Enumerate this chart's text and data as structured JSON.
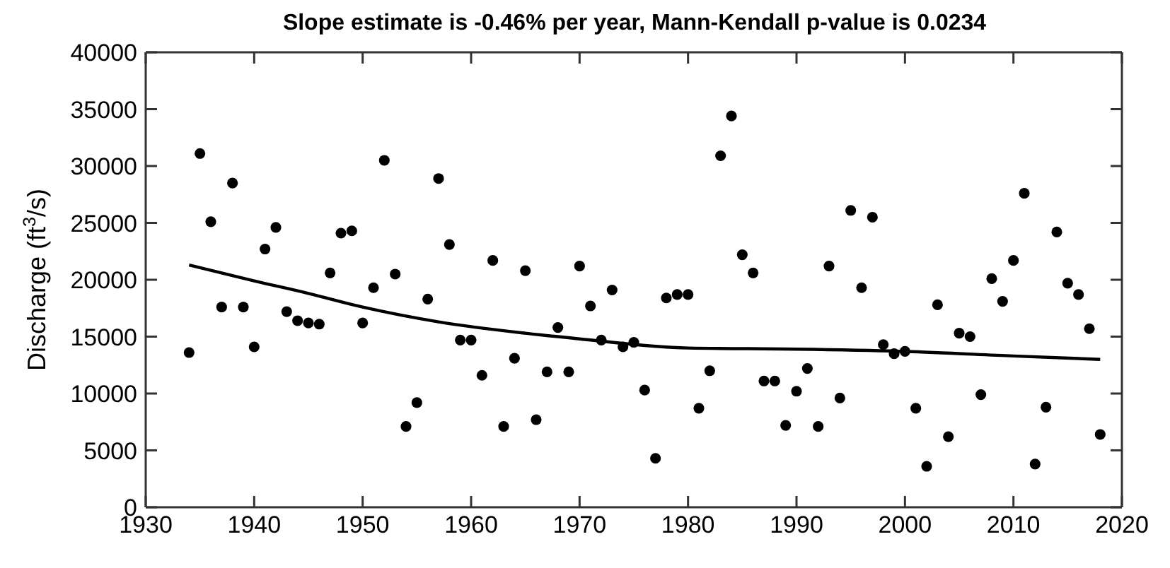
{
  "chart_data": {
    "type": "scatter",
    "title": "Slope estimate is -0.46% per year, Mann-Kendall p-value is 0.0234",
    "ylabel": "Discharge (ft$^{3}$/s)",
    "x": [
      1934,
      1935,
      1936,
      1937,
      1938,
      1939,
      1940,
      1941,
      1942,
      1943,
      1944,
      1945,
      1946,
      1947,
      1948,
      1949,
      1950,
      1951,
      1952,
      1953,
      1954,
      1955,
      1956,
      1957,
      1958,
      1959,
      1960,
      1961,
      1962,
      1963,
      1964,
      1965,
      1966,
      1967,
      1968,
      1969,
      1970,
      1971,
      1972,
      1973,
      1974,
      1975,
      1976,
      1977,
      1978,
      1979,
      1980,
      1981,
      1982,
      1983,
      1984,
      1985,
      1986,
      1987,
      1988,
      1989,
      1990,
      1991,
      1992,
      1993,
      1994,
      1995,
      1996,
      1997,
      1998,
      1999,
      2000,
      2001,
      2002,
      2003,
      2004,
      2005,
      2006,
      2007,
      2008,
      2009,
      2010,
      2011,
      2012,
      2013,
      2014,
      2015,
      2016,
      2017,
      2018
    ],
    "series": [
      {
        "color": "#000000",
        "marker": "circle",
        "values": [
          13600,
          31100,
          25100,
          17600,
          28500,
          17600,
          14100,
          22700,
          24600,
          17200,
          16400,
          16200,
          16100,
          20600,
          24100,
          24300,
          16200,
          19300,
          30500,
          20500,
          7100,
          9200,
          18300,
          28900,
          23100,
          14700,
          14700,
          11600,
          21700,
          7100,
          13100,
          20800,
          7700,
          11900,
          15800,
          11900,
          21200,
          17700,
          14700,
          19100,
          14100,
          14500,
          10300,
          4300,
          18400,
          18700,
          18700,
          8700,
          12000,
          30900,
          34400,
          22200,
          20600,
          11100,
          11100,
          7200,
          10200,
          12200,
          7100,
          21200,
          9600,
          26100,
          19300,
          25500,
          14300,
          13500,
          13700,
          8700,
          3600,
          17800,
          6200,
          15300,
          15000,
          9900,
          20100,
          18100,
          21700,
          27600,
          3800,
          8800,
          24200,
          19700,
          18700,
          15700,
          6400
        ]
      },
      {
        "type": "line",
        "color": "#000000",
        "marker": "none",
        "line_style": "solid",
        "x": [
          1934,
          1940,
          1945,
          1950,
          1957,
          1965,
          1970,
          1980,
          1990,
          2000,
          2010,
          2018
        ],
        "values": [
          21300,
          19900,
          18800,
          17600,
          16300,
          15300,
          14800,
          14000,
          13900,
          13700,
          13300,
          13000
        ]
      }
    ],
    "xlim": [
      1930,
      2020
    ],
    "xticks": [
      1930,
      1940,
      1950,
      1960,
      1970,
      1980,
      1990,
      2000,
      2010,
      2020
    ],
    "ylim": [
      0,
      40000
    ],
    "yticks": [
      0,
      5000,
      10000,
      15000,
      20000,
      25000,
      30000,
      35000,
      40000
    ],
    "grid": false,
    "legend": false
  }
}
